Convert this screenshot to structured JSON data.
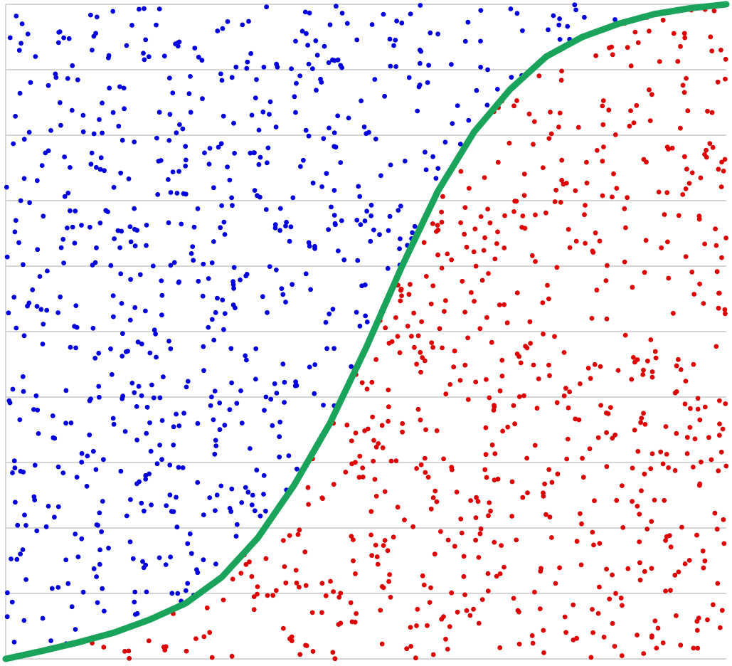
{
  "chart_data": {
    "type": "scatter",
    "title": "",
    "xlabel": "",
    "ylabel": "",
    "xlim": [
      0,
      1
    ],
    "ylim": [
      0,
      1
    ],
    "grid": {
      "horizontal": true,
      "vertical": false,
      "y_ticks": [
        0,
        0.1,
        0.2,
        0.3,
        0.4,
        0.5,
        0.6,
        0.7,
        0.8,
        0.9,
        1.0
      ]
    },
    "legend": "none",
    "point_count_per_series": 700,
    "series": [
      {
        "class": "above-curve",
        "color": "#0000dd"
      },
      {
        "class": "below-curve",
        "color": "#dd0000"
      }
    ],
    "boundary_curve": {
      "color": "#1aa35a",
      "points": [
        [
          0.0,
          0.0
        ],
        [
          0.05,
          0.012
        ],
        [
          0.1,
          0.025
        ],
        [
          0.15,
          0.04
        ],
        [
          0.2,
          0.06
        ],
        [
          0.25,
          0.085
        ],
        [
          0.3,
          0.125
        ],
        [
          0.35,
          0.185
        ],
        [
          0.4,
          0.265
        ],
        [
          0.45,
          0.36
        ],
        [
          0.5,
          0.475
        ],
        [
          0.55,
          0.6
        ],
        [
          0.6,
          0.715
        ],
        [
          0.65,
          0.805
        ],
        [
          0.7,
          0.87
        ],
        [
          0.75,
          0.92
        ],
        [
          0.8,
          0.95
        ],
        [
          0.85,
          0.97
        ],
        [
          0.9,
          0.985
        ],
        [
          0.95,
          0.994
        ],
        [
          1.0,
          1.0
        ]
      ]
    }
  }
}
